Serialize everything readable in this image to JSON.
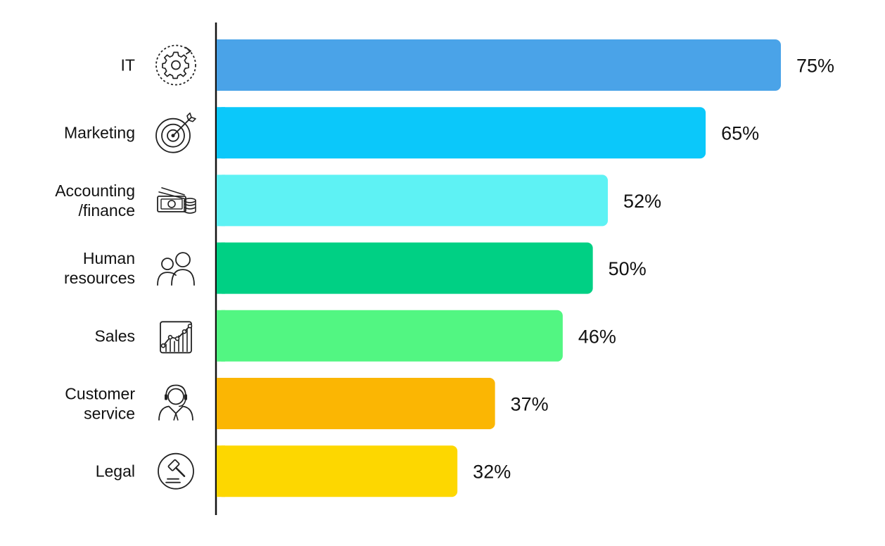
{
  "chart_data": {
    "type": "bar",
    "orientation": "horizontal",
    "categories": [
      [
        "IT"
      ],
      [
        "Marketing"
      ],
      [
        "Accounting",
        "/finance"
      ],
      [
        "Human",
        "resources"
      ],
      [
        "Sales"
      ],
      [
        "Customer",
        "service"
      ],
      [
        "Legal"
      ]
    ],
    "values": [
      75,
      65,
      52,
      50,
      46,
      37,
      32
    ],
    "value_labels": [
      "75%",
      "65%",
      "52%",
      "50%",
      "46%",
      "37%",
      "32%"
    ],
    "colors": [
      "#4aa3e8",
      "#0bc8fa",
      "#5ef2f4",
      "#00d084",
      "#52f682",
      "#fbb603",
      "#fdd700"
    ],
    "icons": [
      "gear-icon",
      "target-icon",
      "money-icon",
      "people-icon",
      "growth-chart-icon",
      "support-agent-icon",
      "gavel-icon"
    ],
    "title": "",
    "xlabel": "",
    "ylabel": "",
    "xlim": [
      0,
      75
    ],
    "grid": false,
    "legend": "none"
  }
}
